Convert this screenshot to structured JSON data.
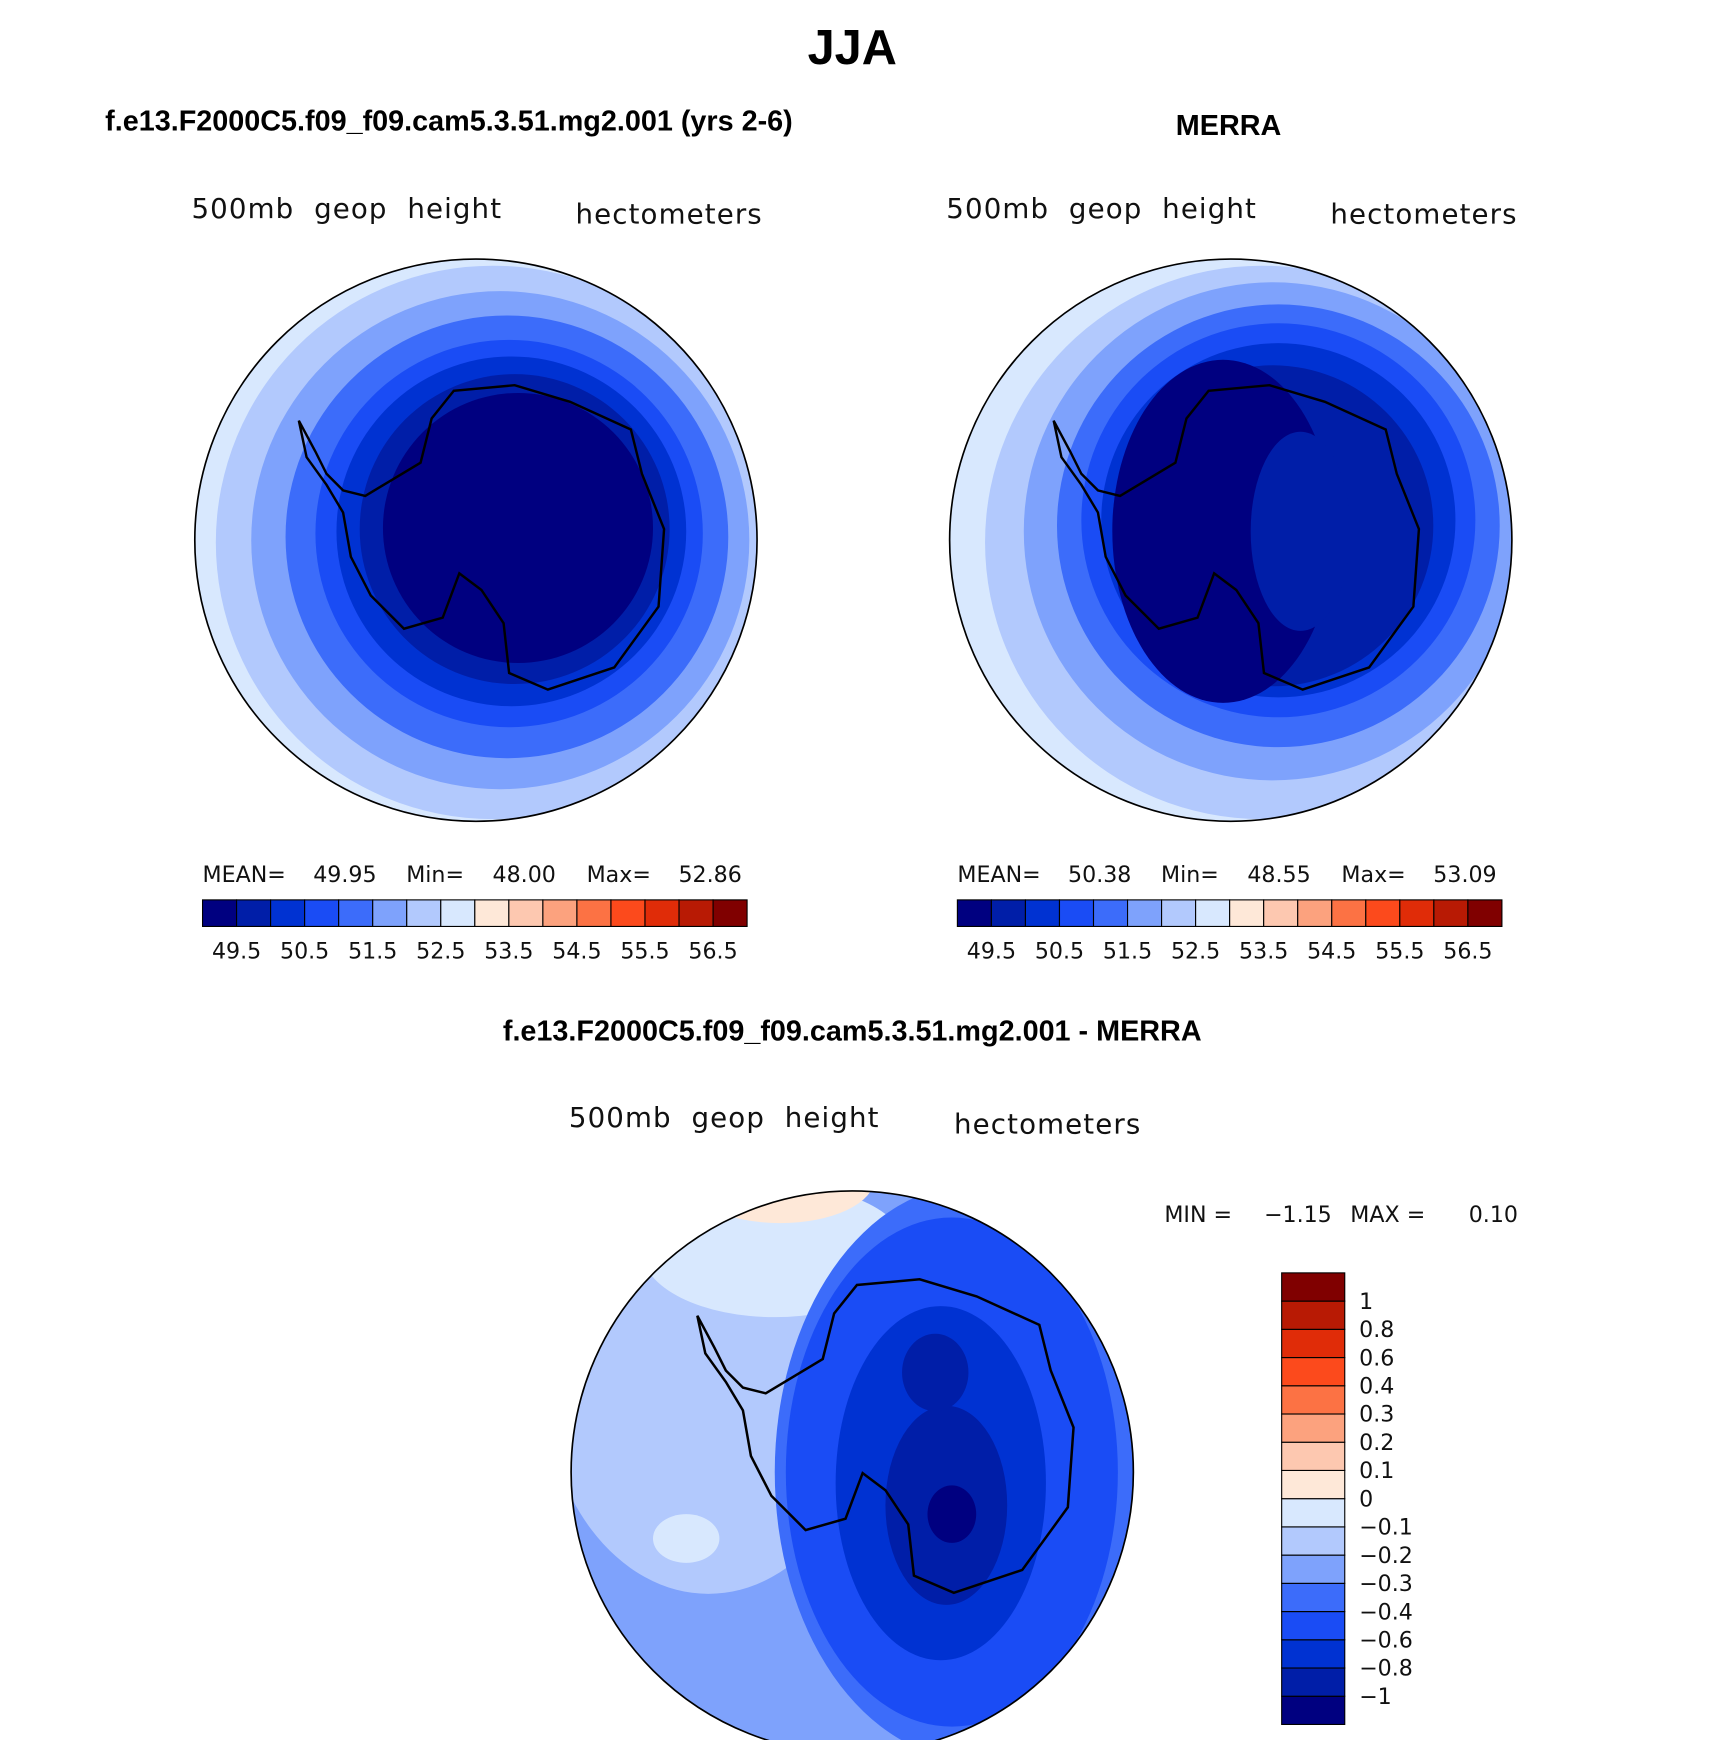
{
  "title": "JJA",
  "panels": [
    {
      "title": "f.e13.F2000C5.f09_f09.cam5.3.51.mg2.001 (yrs 2-6)",
      "variable": "500mb  geop  height",
      "units": "hectometers",
      "stats": {
        "mean_label": "MEAN=",
        "mean": "49.95",
        "min_label": "Min=",
        "min": "48.00",
        "max_label": "Max=",
        "max": "52.86"
      },
      "colorbar": {
        "colors": [
          "#000080",
          "#001ea8",
          "#0032d2",
          "#1a4cf5",
          "#3c6cfa",
          "#7ea2fc",
          "#b2c9fd",
          "#d8e8fe",
          "#fee8d8",
          "#fdc8b0",
          "#fca27e",
          "#fc7244",
          "#fc4a1c",
          "#e02c08",
          "#b81a04",
          "#800000"
        ],
        "labels": [
          "49.5",
          "50.5",
          "51.5",
          "52.5",
          "53.5",
          "54.5",
          "55.5",
          "56.5"
        ]
      }
    },
    {
      "title": "MERRA",
      "variable": "500mb  geop  height",
      "units": "hectometers",
      "stats": {
        "mean_label": "MEAN=",
        "mean": "50.38",
        "min_label": "Min=",
        "min": "48.55",
        "max_label": "Max=",
        "max": "53.09"
      },
      "colorbar": {
        "colors": [
          "#000080",
          "#001ea8",
          "#0032d2",
          "#1a4cf5",
          "#3c6cfa",
          "#7ea2fc",
          "#b2c9fd",
          "#d8e8fe",
          "#fee8d8",
          "#fdc8b0",
          "#fca27e",
          "#fc7244",
          "#fc4a1c",
          "#e02c08",
          "#b81a04",
          "#800000"
        ],
        "labels": [
          "49.5",
          "50.5",
          "51.5",
          "52.5",
          "53.5",
          "54.5",
          "55.5",
          "56.5"
        ]
      }
    },
    {
      "title": "f.e13.F2000C5.f09_f09.cam5.3.51.mg2.001 - MERRA",
      "variable": "500mb  geop  height",
      "units": "hectometers",
      "stats": {
        "min_label": "MIN =",
        "min": "−1.15",
        "max_label": "MAX =",
        "max": "0.10"
      },
      "colorbar": {
        "colors": [
          "#000080",
          "#001ea8",
          "#0032d2",
          "#1a4cf5",
          "#3c6cfa",
          "#7ea2fc",
          "#b2c9fd",
          "#d8e8fe",
          "#fee8d8",
          "#fdc8b0",
          "#fca27e",
          "#fc7244",
          "#fc4a1c",
          "#e02c08",
          "#b81a04",
          "#800000"
        ],
        "labels": [
          "−1",
          "−0.8",
          "−0.6",
          "−0.4",
          "−0.3",
          "−0.2",
          "−0.1",
          "0",
          "0.1",
          "0.2",
          "0.3",
          "0.4",
          "0.6",
          "0.8",
          "1"
        ]
      }
    }
  ]
}
